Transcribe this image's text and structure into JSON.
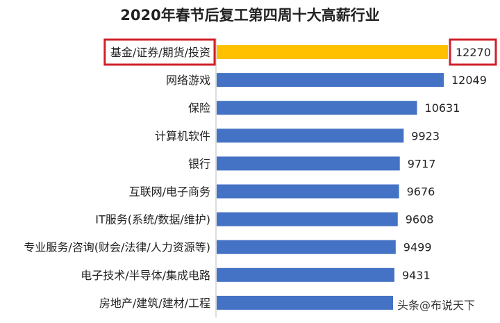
{
  "chart_data": {
    "type": "bar",
    "orientation": "horizontal",
    "title": "2020年春节后复工第四周十大高薪行业",
    "categories": [
      "基金/证券/期货/投资",
      "网络游戏",
      "保险",
      "计算机软件",
      "银行",
      "互联网/电子商务",
      "IT服务(系统/数据/维护)",
      "专业服务/咨询(财会/法律/人力资源等)",
      "电子技术/半导体/集成电路",
      "房地产/建筑/建材/工程"
    ],
    "values": [
      12270,
      12049,
      10631,
      9923,
      9717,
      9676,
      9608,
      9499,
      9431,
      9360
    ],
    "value_labels": [
      "12270",
      "12049",
      "10631",
      "9923",
      "9717",
      "9676",
      "9608",
      "9499",
      "9431",
      ""
    ],
    "xlim": [
      0,
      12270
    ],
    "grid": false,
    "colors": {
      "highlight": "#FFC000",
      "default": "#4472C4",
      "box": "#D0202A"
    },
    "highlighted_index": 0
  },
  "watermark": "头条@布说天下"
}
